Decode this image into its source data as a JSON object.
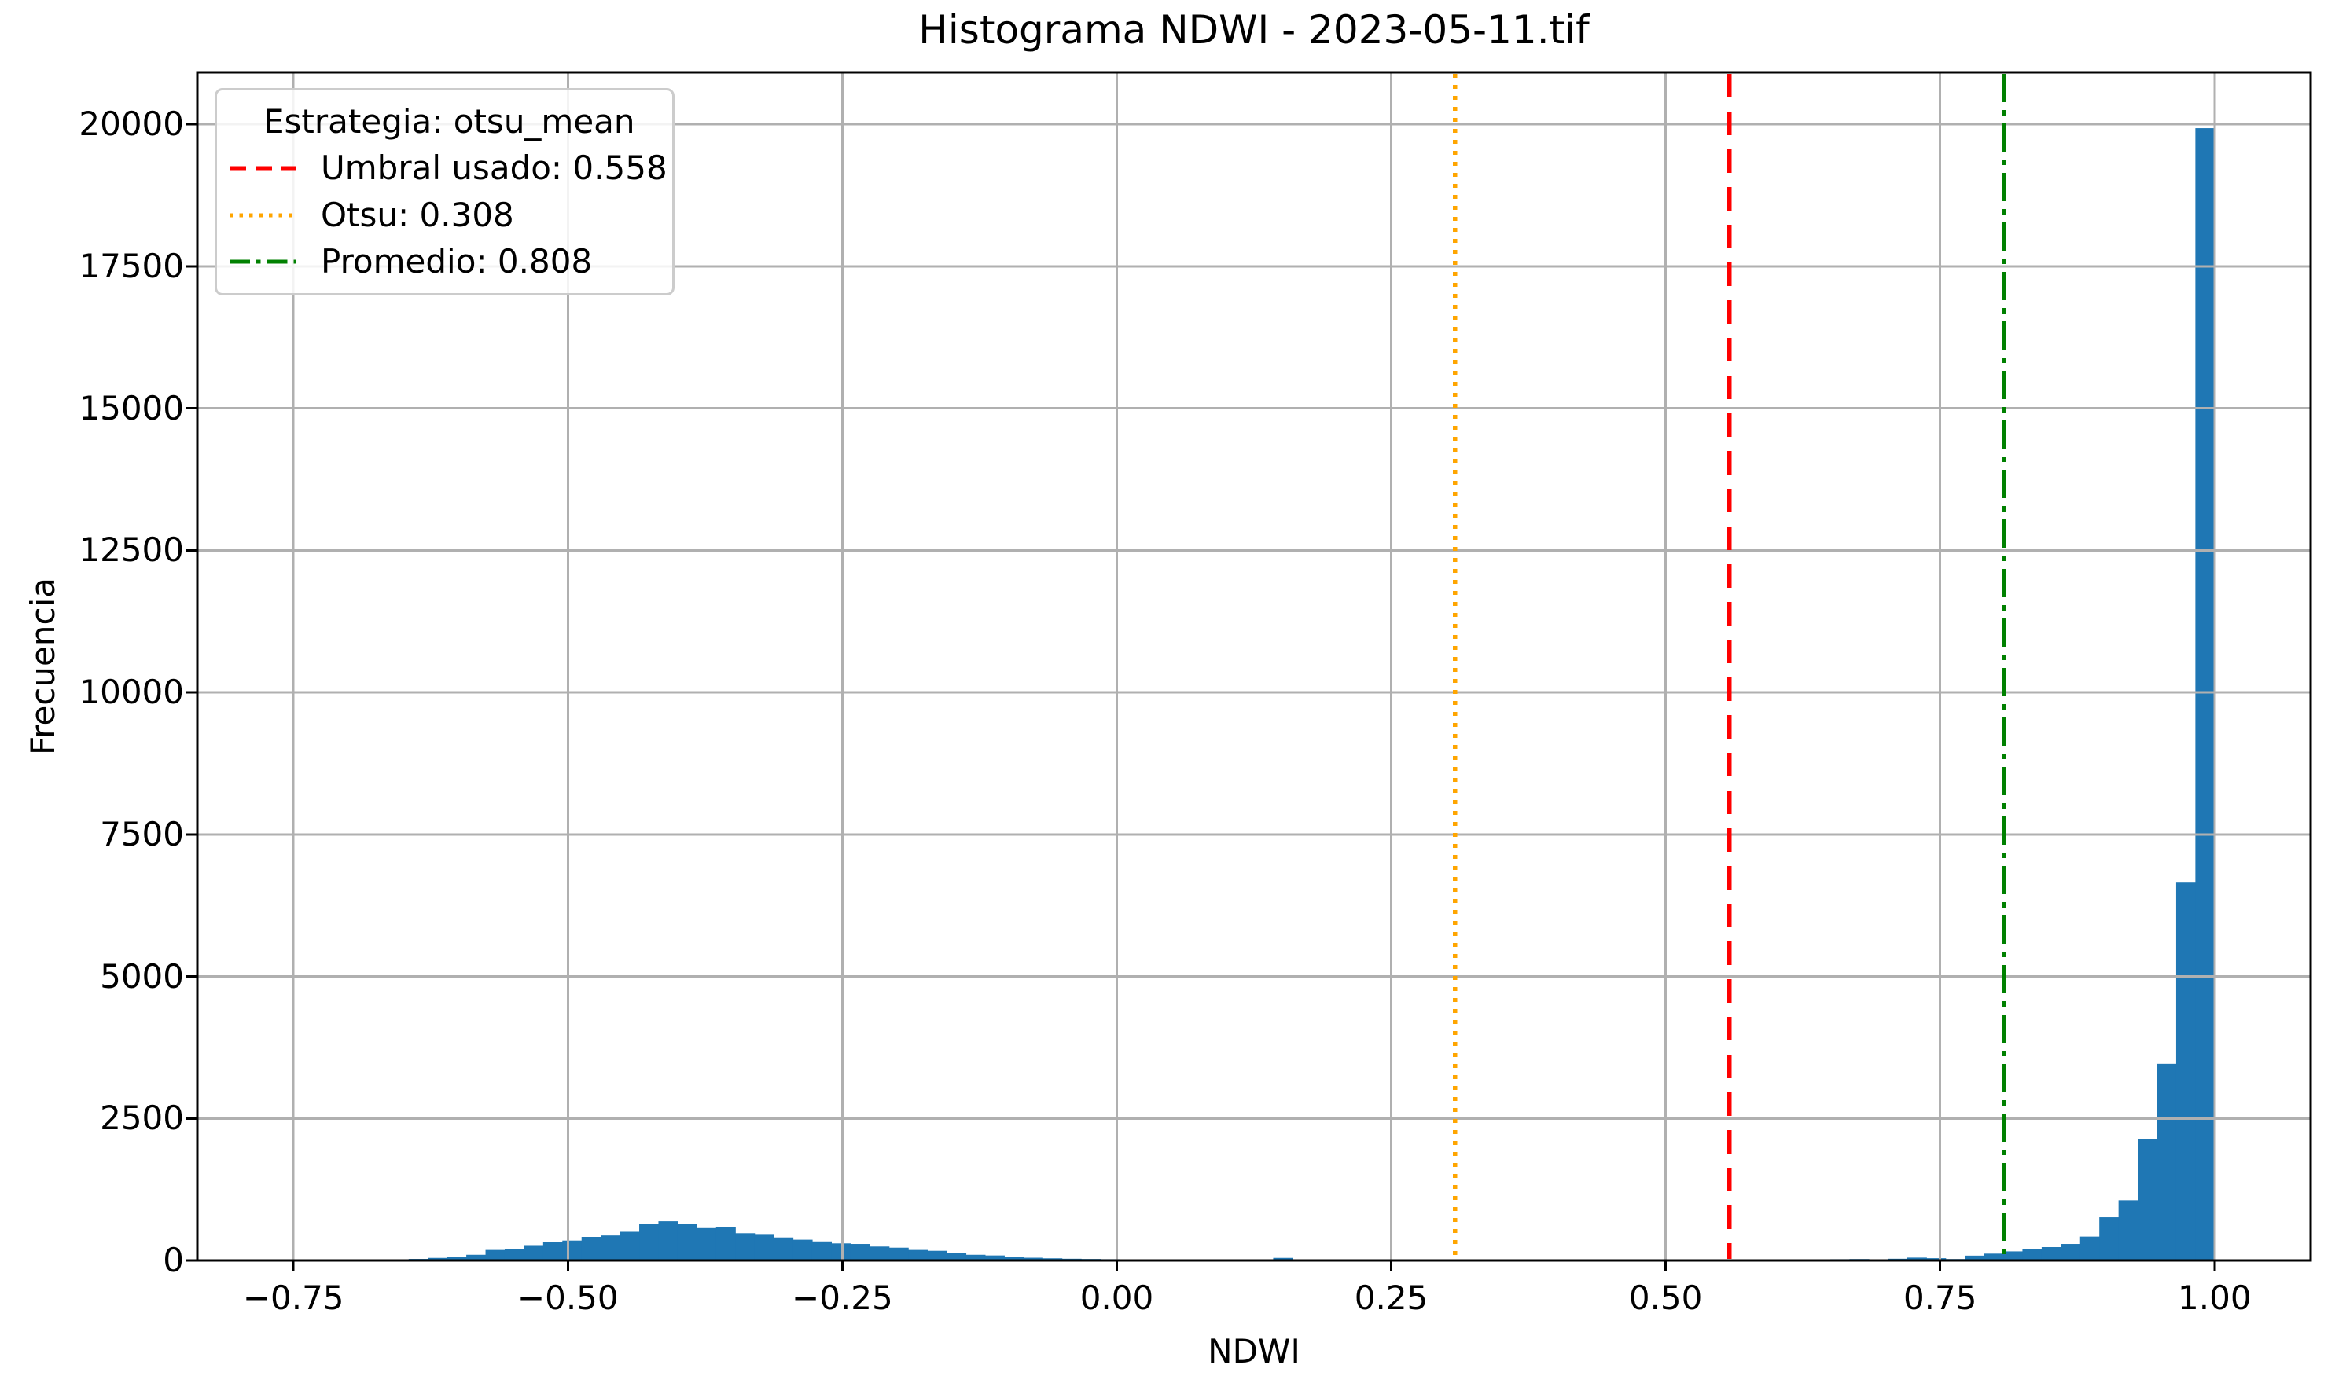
{
  "chart_data": {
    "type": "bar",
    "subtype": "histogram",
    "title": "Histograma NDWI - 2023-05-11.tif",
    "xlabel": "NDWI",
    "ylabel": "Frecuencia",
    "legend_title": "Estrategia: otsu_mean",
    "bar_color": "#1f77b4",
    "grid_color": "#b0b0b0",
    "grid": true,
    "legend_position": "upper left",
    "xlim": [
      -0.8375,
      1.0875
    ],
    "ylim": [
      0,
      20913
    ],
    "bin_start": -0.75,
    "bin_width": 0.0175,
    "counts": [
      0,
      0,
      1,
      2,
      3,
      8,
      27,
      45,
      65,
      100,
      185,
      205,
      270,
      330,
      350,
      415,
      440,
      505,
      650,
      690,
      640,
      570,
      590,
      480,
      465,
      405,
      365,
      335,
      300,
      290,
      245,
      225,
      185,
      170,
      135,
      100,
      88,
      62,
      48,
      38,
      30,
      26,
      22,
      18,
      15,
      10,
      8,
      7,
      6,
      5,
      8,
      45,
      12,
      6,
      5,
      4,
      4,
      3,
      3,
      3,
      3,
      2,
      2,
      2,
      2,
      3,
      3,
      3,
      4,
      4,
      5,
      5,
      5,
      6,
      6,
      6,
      7,
      8,
      8,
      10,
      22,
      25,
      15,
      30,
      50,
      40,
      25,
      85,
      120,
      160,
      200,
      235,
      290,
      420,
      760,
      1060,
      2130,
      3460,
      6650,
      19930
    ],
    "x_ticks": [
      {
        "value": -0.75,
        "label": "−0.75"
      },
      {
        "value": -0.5,
        "label": "−0.50"
      },
      {
        "value": -0.25,
        "label": "−0.25"
      },
      {
        "value": 0.0,
        "label": "0.00"
      },
      {
        "value": 0.25,
        "label": "0.25"
      },
      {
        "value": 0.5,
        "label": "0.50"
      },
      {
        "value": 0.75,
        "label": "0.75"
      },
      {
        "value": 1.0,
        "label": "1.00"
      }
    ],
    "y_ticks": [
      {
        "value": 0,
        "label": "0"
      },
      {
        "value": 2500,
        "label": "2500"
      },
      {
        "value": 5000,
        "label": "5000"
      },
      {
        "value": 7500,
        "label": "7500"
      },
      {
        "value": 10000,
        "label": "10000"
      },
      {
        "value": 12500,
        "label": "12500"
      },
      {
        "value": 15000,
        "label": "15000"
      },
      {
        "value": 17500,
        "label": "17500"
      },
      {
        "value": 20000,
        "label": "20000"
      }
    ],
    "vlines": [
      {
        "name": "umbral",
        "label": "Umbral usado: 0.558",
        "value": 0.558,
        "color": "#ff0000",
        "style": "dashed"
      },
      {
        "name": "otsu",
        "label": "Otsu: 0.308",
        "value": 0.308,
        "color": "#ffa500",
        "style": "dotted"
      },
      {
        "name": "promedio",
        "label": "Promedio: 0.808",
        "value": 0.808,
        "color": "#008000",
        "style": "dashdot"
      }
    ]
  }
}
